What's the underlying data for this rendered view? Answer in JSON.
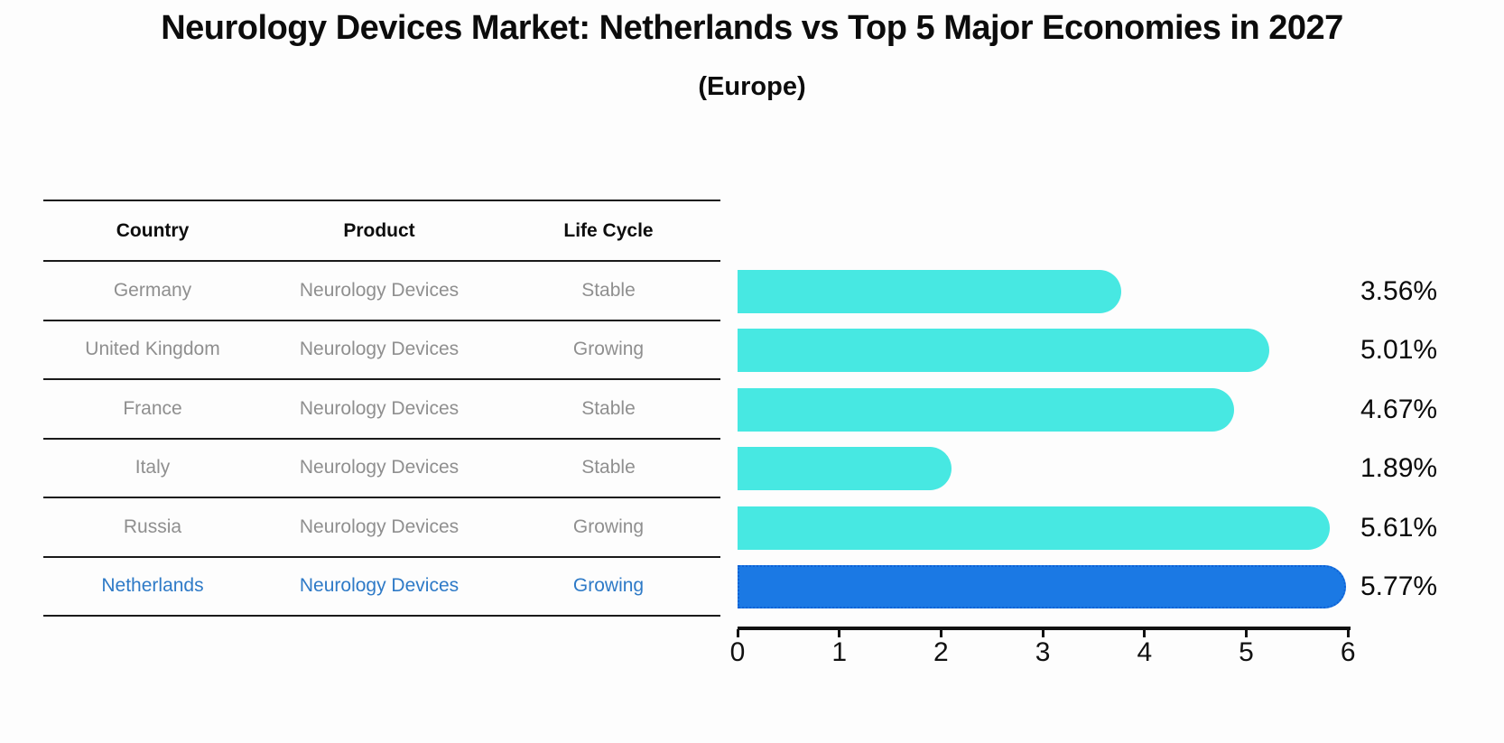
{
  "chart_data": {
    "type": "bar",
    "orientation": "horizontal",
    "title": "Neurology Devices Market: Netherlands vs Top 5 Major Economies in 2027",
    "subtitle": "(Europe)",
    "categories": [
      "Germany",
      "United Kingdom",
      "France",
      "Italy",
      "Russia",
      "Netherlands"
    ],
    "values": [
      3.56,
      5.01,
      4.67,
      1.89,
      5.61,
      5.77
    ],
    "value_labels": [
      "3.56%",
      "5.01%",
      "4.67%",
      "1.89%",
      "5.61%",
      "5.77%"
    ],
    "xlim": [
      0,
      6
    ],
    "x_ticks": [
      "0",
      "1",
      "2",
      "3",
      "4",
      "5",
      "6"
    ],
    "legend": "none",
    "grid": "off",
    "bar_color": "#47e8e2",
    "highlight_color": "#1b79e4",
    "highlight_index": 5
  },
  "table": {
    "headers": [
      "Country",
      "Product",
      "Life Cycle"
    ],
    "rows": [
      {
        "country": "Germany",
        "product": "Neurology Devices",
        "life_cycle": "Stable",
        "highlight": false
      },
      {
        "country": "United Kingdom",
        "product": "Neurology Devices",
        "life_cycle": "Growing",
        "highlight": false
      },
      {
        "country": "France",
        "product": "Neurology Devices",
        "life_cycle": "Stable",
        "highlight": false
      },
      {
        "country": "Italy",
        "product": "Neurology Devices",
        "life_cycle": "Stable",
        "highlight": false
      },
      {
        "country": "Russia",
        "product": "Neurology Devices",
        "life_cycle": "Growing",
        "highlight": false
      },
      {
        "country": "Netherlands",
        "product": "Neurology Devices",
        "life_cycle": "Growing",
        "highlight": true
      }
    ]
  },
  "colors": {
    "background": "#fdfdfd",
    "bar": "#47e8e2",
    "highlight_bar": "#1b79e4",
    "highlight_text": "#2e7ac7",
    "table_text": "#8f8f8f",
    "axis": "#111111"
  }
}
